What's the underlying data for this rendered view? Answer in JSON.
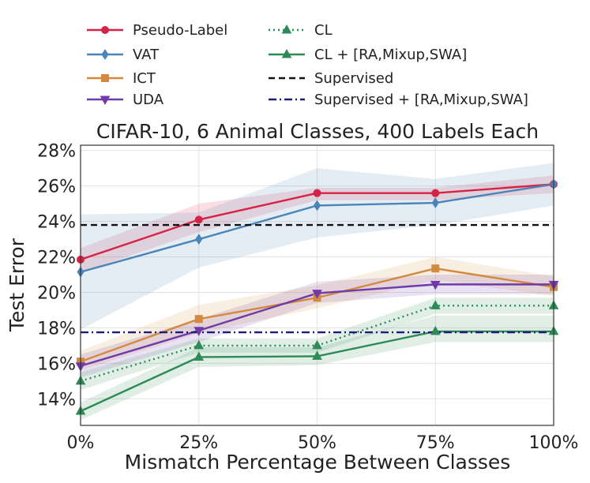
{
  "chart_data": {
    "type": "line",
    "title": "CIFAR-10, 6 Animal Classes, 400 Labels Each",
    "xlabel": "Mismatch Percentage Between Classes",
    "ylabel": "Test Error",
    "x": [
      0,
      25,
      50,
      75,
      100
    ],
    "x_tick_labels": [
      "0%",
      "25%",
      "50%",
      "75%",
      "100%"
    ],
    "ylim": [
      12.5,
      28.3
    ],
    "y_ticks": [
      14,
      16,
      18,
      20,
      22,
      24,
      26,
      28
    ],
    "y_tick_labels": [
      "14%",
      "16%",
      "18%",
      "20%",
      "22%",
      "24%",
      "26%",
      "28%"
    ],
    "grid": true,
    "legend_position": "top",
    "series": [
      {
        "name": "Pseudo-Label",
        "color": "#d62246",
        "marker": "circle",
        "style": "solid",
        "values": [
          21.85,
          24.1,
          25.6,
          25.6,
          26.1
        ],
        "band_low": [
          21.1,
          23.4,
          25.2,
          25.2,
          25.6
        ],
        "band_high": [
          22.5,
          25.0,
          25.9,
          25.9,
          26.6
        ]
      },
      {
        "name": "VAT",
        "color": "#4a84b8",
        "marker": "diamond",
        "style": "solid",
        "values": [
          21.15,
          23.0,
          24.9,
          25.05,
          26.1
        ],
        "band_low": [
          17.9,
          21.4,
          23.1,
          23.8,
          24.9
        ],
        "band_high": [
          24.4,
          24.5,
          27.0,
          26.4,
          27.3
        ]
      },
      {
        "name": "ICT",
        "color": "#d38a3e",
        "marker": "square",
        "style": "solid",
        "values": [
          16.1,
          18.5,
          19.7,
          21.35,
          20.3
        ],
        "band_low": [
          15.6,
          17.7,
          19.1,
          20.7,
          19.8
        ],
        "band_high": [
          16.7,
          19.3,
          20.4,
          22.0,
          20.9
        ]
      },
      {
        "name": "UDA",
        "color": "#6e3ba8",
        "marker": "triangle-down",
        "style": "solid",
        "values": [
          15.85,
          17.85,
          19.95,
          20.45,
          20.45
        ],
        "band_low": [
          15.2,
          17.2,
          19.4,
          19.9,
          19.9
        ],
        "band_high": [
          16.5,
          18.5,
          20.6,
          21.0,
          21.0
        ]
      },
      {
        "name": "CL",
        "color": "#2e8b57",
        "marker": "triangle-up",
        "style": "dotted",
        "values": [
          15.0,
          17.0,
          17.0,
          19.25,
          19.25
        ],
        "band_low": [
          14.5,
          16.6,
          16.6,
          18.8,
          18.8
        ],
        "band_high": [
          15.5,
          17.4,
          17.4,
          19.7,
          19.7
        ]
      },
      {
        "name": "CL + [RA,Mixup,SWA]",
        "color": "#2e8b57",
        "marker": "triangle-up",
        "style": "solid",
        "values": [
          13.3,
          16.35,
          16.4,
          17.8,
          17.8
        ],
        "band_low": [
          12.8,
          15.8,
          15.9,
          17.2,
          17.2
        ],
        "band_high": [
          13.8,
          16.9,
          16.9,
          18.7,
          18.7
        ]
      },
      {
        "name": "Supervised",
        "color": "#111111",
        "marker": "none",
        "style": "dashed",
        "values": [
          23.8,
          23.8,
          23.8,
          23.8,
          23.8
        ]
      },
      {
        "name": "Supervised + [RA,Mixup,SWA]",
        "color": "#1c1c7a",
        "marker": "none",
        "style": "dashdot",
        "values": [
          17.75,
          17.75,
          17.75,
          17.75,
          17.75
        ]
      }
    ]
  }
}
